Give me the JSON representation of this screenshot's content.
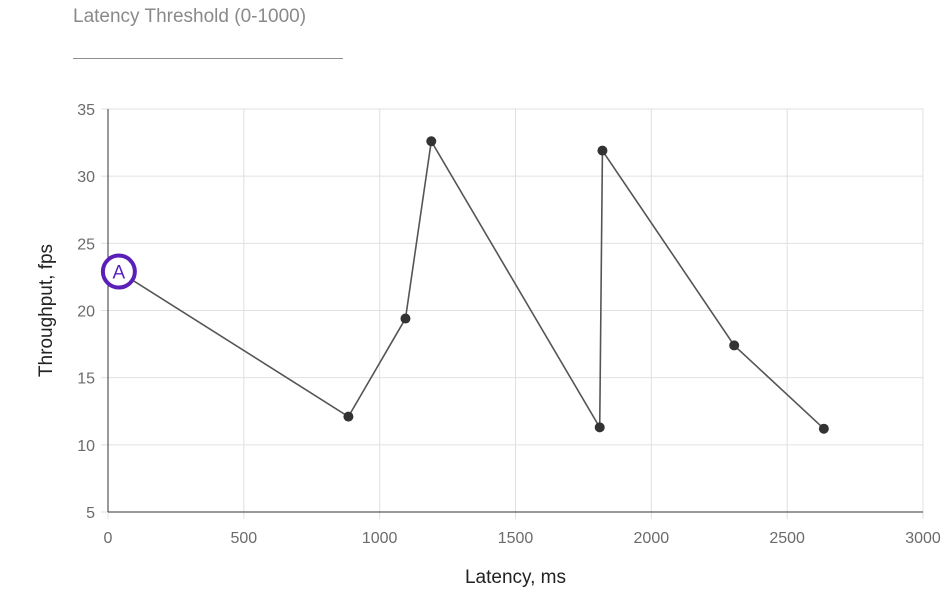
{
  "threshold_input": {
    "placeholder": "Latency Threshold (0-1000)",
    "value": ""
  },
  "chart_data": {
    "type": "line",
    "title": "",
    "xlabel": "Latency, ms",
    "ylabel": "Throughput, fps",
    "xlim": [
      0,
      3000
    ],
    "ylim": [
      5,
      35
    ],
    "xticks": [
      0,
      500,
      1000,
      1500,
      2000,
      2500,
      3000
    ],
    "yticks": [
      5,
      10,
      15,
      20,
      25,
      30,
      35
    ],
    "grid": true,
    "legend": "none",
    "series": [
      {
        "x": [
          40,
          885,
          1095,
          1190,
          1810,
          1820,
          2305,
          2635
        ],
        "y": [
          22.9,
          12.1,
          19.4,
          32.6,
          11.3,
          31.9,
          17.4,
          11.2
        ]
      }
    ],
    "annotations": [
      {
        "label": "A",
        "x": 40,
        "y": 22.9
      }
    ],
    "colors": {
      "line": "#555555",
      "point": "#333333",
      "grid": "#e0e0e0",
      "marker": "#5a1fb8"
    }
  }
}
